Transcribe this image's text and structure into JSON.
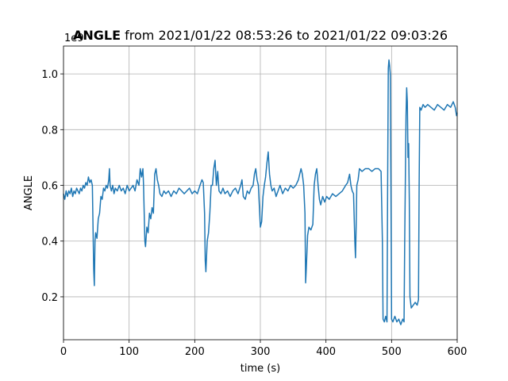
{
  "chart_data": {
    "type": "line",
    "title": {
      "bold": "ANGLE",
      "rest": " from 2021/01/22 08:53:26 to 2021/01/22 09:03:26"
    },
    "xlabel": "time (s)",
    "ylabel": "ANGLE",
    "y_offset": "1e9",
    "color": "#1f77b4",
    "grid": true,
    "xlim": [
      0,
      600
    ],
    "xticks": [
      0,
      100,
      200,
      300,
      400,
      500,
      600
    ],
    "ylim": [
      0.046,
      1.1
    ],
    "yticks": [
      0.2,
      0.4,
      0.6,
      0.8,
      {
        "value": 1,
        "label": "1.0"
      }
    ],
    "x": [
      0,
      2,
      4,
      6,
      8,
      10,
      12,
      14,
      16,
      18,
      20,
      22,
      24,
      26,
      28,
      30,
      32,
      34,
      36,
      38,
      40,
      42,
      44,
      46,
      47,
      48,
      49,
      51,
      53,
      55,
      57,
      59,
      61,
      63,
      65,
      67,
      69,
      70,
      71,
      73,
      75,
      77,
      79,
      82,
      85,
      88,
      91,
      94,
      97,
      100,
      103,
      106,
      109,
      112,
      115,
      117,
      119,
      121,
      122,
      124,
      125,
      127,
      129,
      131,
      133,
      135,
      137,
      139,
      141,
      143,
      145,
      147,
      150,
      153,
      156,
      160,
      164,
      168,
      172,
      176,
      180,
      184,
      188,
      192,
      196,
      200,
      204,
      208,
      211,
      213,
      215,
      216,
      217,
      219,
      221,
      223,
      225,
      227,
      229,
      231,
      233,
      235,
      237,
      240,
      243,
      246,
      250,
      254,
      258,
      262,
      266,
      270,
      272,
      274,
      277,
      280,
      283,
      286,
      289,
      291,
      293,
      295,
      297,
      299,
      300,
      302,
      304,
      306,
      308,
      310,
      312,
      314,
      316,
      318,
      321,
      324,
      327,
      330,
      334,
      338,
      342,
      346,
      350,
      354,
      358,
      362,
      364,
      366,
      368,
      369,
      370,
      372,
      374,
      377,
      380,
      382,
      384,
      386,
      388,
      390,
      392,
      395,
      398,
      401,
      405,
      410,
      415,
      420,
      425,
      430,
      433,
      436,
      438,
      440,
      442,
      444,
      445,
      446,
      447,
      449,
      451,
      455,
      460,
      465,
      470,
      475,
      480,
      484,
      486,
      487,
      489,
      491,
      493,
      494,
      495,
      496,
      497,
      498,
      499,
      500,
      502,
      505,
      508,
      511,
      514,
      517,
      519,
      520,
      521,
      522,
      523,
      524,
      525,
      526,
      527,
      528,
      530,
      533,
      536,
      539,
      541,
      542,
      543,
      545,
      548,
      551,
      555,
      560,
      565,
      570,
      575,
      580,
      585,
      590,
      594,
      597,
      599,
      600
    ],
    "values": [
      0.57,
      0.55,
      0.58,
      0.56,
      0.58,
      0.57,
      0.59,
      0.56,
      0.58,
      0.57,
      0.59,
      0.58,
      0.57,
      0.59,
      0.58,
      0.6,
      0.59,
      0.61,
      0.6,
      0.63,
      0.61,
      0.62,
      0.6,
      0.3,
      0.24,
      0.4,
      0.43,
      0.41,
      0.48,
      0.5,
      0.56,
      0.55,
      0.59,
      0.58,
      0.6,
      0.59,
      0.62,
      0.66,
      0.6,
      0.58,
      0.6,
      0.57,
      0.59,
      0.58,
      0.6,
      0.58,
      0.59,
      0.57,
      0.6,
      0.58,
      0.59,
      0.6,
      0.58,
      0.62,
      0.6,
      0.66,
      0.63,
      0.66,
      0.6,
      0.4,
      0.38,
      0.45,
      0.43,
      0.5,
      0.48,
      0.52,
      0.5,
      0.64,
      0.66,
      0.62,
      0.6,
      0.57,
      0.56,
      0.58,
      0.57,
      0.58,
      0.56,
      0.58,
      0.57,
      0.59,
      0.58,
      0.57,
      0.58,
      0.59,
      0.57,
      0.58,
      0.57,
      0.6,
      0.62,
      0.61,
      0.5,
      0.33,
      0.29,
      0.4,
      0.43,
      0.5,
      0.6,
      0.6,
      0.66,
      0.69,
      0.6,
      0.65,
      0.58,
      0.57,
      0.59,
      0.57,
      0.58,
      0.56,
      0.58,
      0.59,
      0.57,
      0.6,
      0.62,
      0.56,
      0.55,
      0.58,
      0.57,
      0.59,
      0.6,
      0.64,
      0.66,
      0.62,
      0.6,
      0.5,
      0.45,
      0.47,
      0.56,
      0.6,
      0.63,
      0.68,
      0.72,
      0.64,
      0.6,
      0.58,
      0.59,
      0.56,
      0.58,
      0.6,
      0.57,
      0.59,
      0.58,
      0.6,
      0.59,
      0.6,
      0.62,
      0.66,
      0.64,
      0.6,
      0.5,
      0.25,
      0.3,
      0.42,
      0.45,
      0.44,
      0.46,
      0.6,
      0.64,
      0.66,
      0.6,
      0.55,
      0.53,
      0.56,
      0.54,
      0.56,
      0.55,
      0.57,
      0.56,
      0.57,
      0.58,
      0.6,
      0.61,
      0.64,
      0.6,
      0.58,
      0.57,
      0.4,
      0.34,
      0.45,
      0.6,
      0.62,
      0.66,
      0.65,
      0.66,
      0.66,
      0.65,
      0.66,
      0.66,
      0.65,
      0.4,
      0.12,
      0.11,
      0.13,
      0.11,
      0.6,
      1.02,
      1.05,
      1.03,
      1.0,
      0.6,
      0.12,
      0.11,
      0.13,
      0.11,
      0.12,
      0.1,
      0.12,
      0.11,
      0.4,
      0.62,
      0.85,
      0.95,
      0.9,
      0.7,
      0.75,
      0.55,
      0.2,
      0.16,
      0.17,
      0.18,
      0.17,
      0.19,
      0.6,
      0.88,
      0.87,
      0.89,
      0.88,
      0.89,
      0.88,
      0.87,
      0.89,
      0.88,
      0.87,
      0.89,
      0.88,
      0.9,
      0.88,
      0.85,
      0.86
    ]
  }
}
